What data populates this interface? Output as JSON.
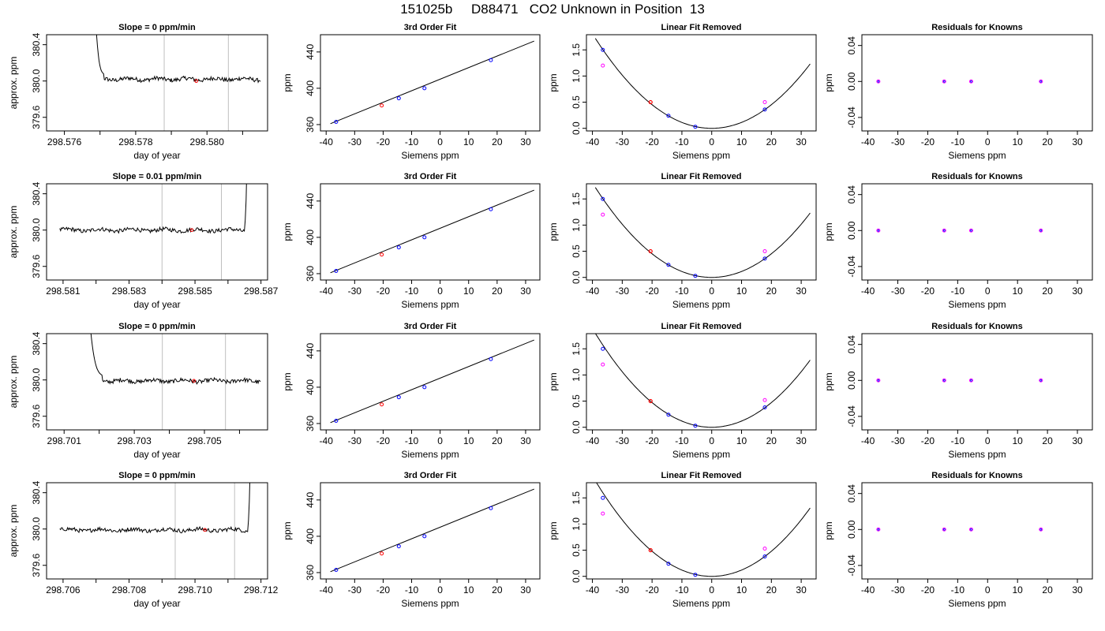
{
  "page": {
    "title": "151025b     D88471   CO2 Unknown in Position  13"
  },
  "colors": {
    "trace": "#000000",
    "window_lines": "#bfbfbf",
    "unknown_point": "#ff0000",
    "standard_point": "#0000ff",
    "residual_point": "#ff00ff"
  },
  "chart_data": [
    {
      "row": 1,
      "panel": "time-series",
      "type": "line",
      "title": "Slope =  0  ppm/min",
      "xlabel": "day of year",
      "ylabel": "approx. ppm",
      "xlim": [
        298.5755,
        298.5817
      ],
      "ylim": [
        379.45,
        380.51
      ],
      "xticks": [
        "298.576",
        "298.578",
        "298.580"
      ],
      "xtick_values": [
        298.576,
        298.578,
        298.58
      ],
      "yticks": [
        "379.6",
        "380.0",
        "380.4"
      ],
      "ytick_values": [
        379.6,
        380.0,
        380.4
      ],
      "minor_xticks": [
        298.577,
        298.579,
        298.581
      ],
      "window": [
        298.5788,
        298.5806
      ],
      "unknown_point": {
        "x": 298.5797,
        "y": 380.0
      },
      "trace": {
        "start": 298.5768,
        "end": 298.5815,
        "drop_end": 298.5771,
        "level": 380.02,
        "spike_side": "left"
      }
    },
    {
      "row": 1,
      "panel": "fit",
      "type": "scatter",
      "title": "3rd Order Fit",
      "xlabel": "Siemens ppm",
      "ylabel": "ppm",
      "xlim": [
        -42,
        35
      ],
      "ylim": [
        353,
        459
      ],
      "xticks": [
        "-40",
        "-30",
        "-20",
        "-10",
        "0",
        "10",
        "20",
        "30"
      ],
      "xtick_values": [
        -40,
        -30,
        -20,
        -10,
        0,
        10,
        20,
        30
      ],
      "yticks": [
        "360",
        "400",
        "440"
      ],
      "ytick_values": [
        360,
        400,
        440
      ],
      "standards": [
        {
          "x": -36.5,
          "y": 363.0
        },
        {
          "x": -14.5,
          "y": 389.0
        },
        {
          "x": -5.5,
          "y": 400.0
        },
        {
          "x": 17.8,
          "y": 431.0
        }
      ],
      "unknown": {
        "x": -20.5,
        "y": 381.0
      },
      "fit_line": [
        {
          "x": -38.5,
          "y": 361
        },
        {
          "x": 33,
          "y": 452
        }
      ]
    },
    {
      "row": 1,
      "panel": "linear-removed",
      "type": "scatter",
      "title": "Linear Fit Removed",
      "xlabel": "Siemens ppm",
      "ylabel": "ppm",
      "xlim": [
        -42,
        35
      ],
      "ylim": [
        -0.05,
        1.79
      ],
      "xticks": [
        "-40",
        "-30",
        "-20",
        "-10",
        "0",
        "10",
        "20",
        "30"
      ],
      "xtick_values": [
        -40,
        -30,
        -20,
        -10,
        0,
        10,
        20,
        30
      ],
      "yticks": [
        "0.0",
        "0.5",
        "1.0",
        "1.5"
      ],
      "ytick_values": [
        0.0,
        0.5,
        1.0,
        1.5
      ],
      "curve_coeff": 0.00113,
      "standards": [
        {
          "x": -36.5,
          "y": 1.5
        },
        {
          "x": -14.5,
          "y": 0.24
        },
        {
          "x": -5.5,
          "y": 0.03
        },
        {
          "x": 17.8,
          "y": 0.36
        }
      ],
      "unknown": {
        "x": -20.5,
        "y": 0.5
      },
      "magenta": [
        {
          "x": -36.5,
          "y": 1.2
        },
        {
          "x": 17.8,
          "y": 0.5
        }
      ]
    },
    {
      "row": 1,
      "panel": "residuals",
      "type": "scatter",
      "title": "Residuals for Knowns",
      "xlabel": "Siemens ppm",
      "ylabel": "ppm",
      "xlim": [
        -42,
        35
      ],
      "ylim": [
        -0.055,
        0.052
      ],
      "xticks": [
        "-40",
        "-30",
        "-20",
        "-10",
        "0",
        "10",
        "20",
        "30"
      ],
      "xtick_values": [
        -40,
        -30,
        -20,
        -10,
        0,
        10,
        20,
        30
      ],
      "yticks": [
        "-0.04",
        "0.00",
        "0.04"
      ],
      "ytick_values": [
        -0.04,
        0.0,
        0.04
      ],
      "points": [
        {
          "x": -36.5,
          "y": 0.0
        },
        {
          "x": -14.5,
          "y": 0.0
        },
        {
          "x": -5.5,
          "y": 0.0
        },
        {
          "x": 17.8,
          "y": 0.0
        }
      ]
    },
    {
      "row": 2,
      "panel": "time-series",
      "type": "line",
      "title": "Slope =  0.01  ppm/min",
      "xlabel": "day of year",
      "ylabel": "approx. ppm",
      "xlim": [
        298.5805,
        298.5872
      ],
      "ylim": [
        379.45,
        380.51
      ],
      "xticks": [
        "298.581",
        "298.583",
        "298.585",
        "298.587"
      ],
      "xtick_values": [
        298.581,
        298.583,
        298.585,
        298.587
      ],
      "yticks": [
        "379.6",
        "380.0",
        "380.4"
      ],
      "ytick_values": [
        379.6,
        380.0,
        380.4
      ],
      "minor_xticks": [
        298.582,
        298.584,
        298.586
      ],
      "window": [
        298.584,
        298.5858
      ],
      "unknown_point": {
        "x": 298.5849,
        "y": 380.0
      },
      "trace": {
        "start": 298.5809,
        "end": 298.5866,
        "drop_end": 298.5865,
        "level": 380.0,
        "spike_side": "right"
      }
    },
    {
      "row": 2,
      "panel": "fit",
      "type": "scatter",
      "title": "3rd Order Fit",
      "xlabel": "Siemens ppm",
      "ylabel": "ppm",
      "xlim": [
        -42,
        35
      ],
      "ylim": [
        353,
        459
      ],
      "xticks": [
        "-40",
        "-30",
        "-20",
        "-10",
        "0",
        "10",
        "20",
        "30"
      ],
      "xtick_values": [
        -40,
        -30,
        -20,
        -10,
        0,
        10,
        20,
        30
      ],
      "yticks": [
        "360",
        "400",
        "440"
      ],
      "ytick_values": [
        360,
        400,
        440
      ],
      "standards": [
        {
          "x": -36.5,
          "y": 363.0
        },
        {
          "x": -14.5,
          "y": 389.0
        },
        {
          "x": -5.5,
          "y": 400.0
        },
        {
          "x": 17.8,
          "y": 431.0
        }
      ],
      "unknown": {
        "x": -20.5,
        "y": 381.0
      },
      "fit_line": [
        {
          "x": -38.5,
          "y": 361
        },
        {
          "x": 33,
          "y": 452
        }
      ]
    },
    {
      "row": 2,
      "panel": "linear-removed",
      "type": "scatter",
      "title": "Linear Fit Removed",
      "xlabel": "Siemens ppm",
      "ylabel": "ppm",
      "xlim": [
        -42,
        35
      ],
      "ylim": [
        -0.05,
        1.79
      ],
      "xticks": [
        "-40",
        "-30",
        "-20",
        "-10",
        "0",
        "10",
        "20",
        "30"
      ],
      "xtick_values": [
        -40,
        -30,
        -20,
        -10,
        0,
        10,
        20,
        30
      ],
      "yticks": [
        "0.0",
        "0.5",
        "1.0",
        "1.5"
      ],
      "ytick_values": [
        0.0,
        0.5,
        1.0,
        1.5
      ],
      "curve_coeff": 0.00113,
      "standards": [
        {
          "x": -36.5,
          "y": 1.5
        },
        {
          "x": -14.5,
          "y": 0.24
        },
        {
          "x": -5.5,
          "y": 0.03
        },
        {
          "x": 17.8,
          "y": 0.36
        }
      ],
      "unknown": {
        "x": -20.5,
        "y": 0.5
      },
      "magenta": [
        {
          "x": -36.5,
          "y": 1.2
        },
        {
          "x": 17.8,
          "y": 0.5
        }
      ]
    },
    {
      "row": 2,
      "panel": "residuals",
      "type": "scatter",
      "title": "Residuals for Knowns",
      "xlabel": "Siemens ppm",
      "ylabel": "ppm",
      "xlim": [
        -42,
        35
      ],
      "ylim": [
        -0.055,
        0.052
      ],
      "xticks": [
        "-40",
        "-30",
        "-20",
        "-10",
        "0",
        "10",
        "20",
        "30"
      ],
      "xtick_values": [
        -40,
        -30,
        -20,
        -10,
        0,
        10,
        20,
        30
      ],
      "yticks": [
        "-0.04",
        "0.00",
        "0.04"
      ],
      "ytick_values": [
        -0.04,
        0.0,
        0.04
      ],
      "points": [
        {
          "x": -36.5,
          "y": 0.0
        },
        {
          "x": -14.5,
          "y": 0.0
        },
        {
          "x": -5.5,
          "y": 0.0
        },
        {
          "x": 17.8,
          "y": 0.0
        }
      ]
    },
    {
      "row": 3,
      "panel": "time-series",
      "type": "line",
      "title": "Slope =  0  ppm/min",
      "xlabel": "day of year",
      "ylabel": "approx. ppm",
      "xlim": [
        298.7005,
        298.7068
      ],
      "ylim": [
        379.45,
        380.51
      ],
      "xticks": [
        "298.701",
        "298.703",
        "298.705"
      ],
      "xtick_values": [
        298.701,
        298.703,
        298.705
      ],
      "yticks": [
        "379.6",
        "380.0",
        "380.4"
      ],
      "ytick_values": [
        379.6,
        380.0,
        380.4
      ],
      "minor_xticks": [
        298.702,
        298.704,
        298.706
      ],
      "window": [
        298.7038,
        298.7056
      ],
      "unknown_point": {
        "x": 298.7047,
        "y": 379.99
      },
      "trace": {
        "start": 298.7016,
        "end": 298.7066,
        "drop_end": 298.7021,
        "level": 379.99,
        "spike_side": "left"
      }
    },
    {
      "row": 3,
      "panel": "fit",
      "type": "scatter",
      "title": "3rd Order Fit",
      "xlabel": "Siemens ppm",
      "ylabel": "ppm",
      "xlim": [
        -42,
        35
      ],
      "ylim": [
        353,
        459
      ],
      "xticks": [
        "-40",
        "-30",
        "-20",
        "-10",
        "0",
        "10",
        "20",
        "30"
      ],
      "xtick_values": [
        -40,
        -30,
        -20,
        -10,
        0,
        10,
        20,
        30
      ],
      "yticks": [
        "360",
        "400",
        "440"
      ],
      "ytick_values": [
        360,
        400,
        440
      ],
      "standards": [
        {
          "x": -36.5,
          "y": 363.0
        },
        {
          "x": -14.5,
          "y": 389.0
        },
        {
          "x": -5.5,
          "y": 400.0
        },
        {
          "x": 17.8,
          "y": 431.0
        }
      ],
      "unknown": {
        "x": -20.5,
        "y": 381.0
      },
      "fit_line": [
        {
          "x": -38.5,
          "y": 361
        },
        {
          "x": 33,
          "y": 452
        }
      ]
    },
    {
      "row": 3,
      "panel": "linear-removed",
      "type": "scatter",
      "title": "Linear Fit Removed",
      "xlabel": "Siemens ppm",
      "ylabel": "ppm",
      "xlim": [
        -42,
        35
      ],
      "ylim": [
        -0.05,
        1.79
      ],
      "xticks": [
        "-40",
        "-30",
        "-20",
        "-10",
        "0",
        "10",
        "20",
        "30"
      ],
      "xtick_values": [
        -40,
        -30,
        -20,
        -10,
        0,
        10,
        20,
        30
      ],
      "yticks": [
        "0.0",
        "0.5",
        "1.0",
        "1.5"
      ],
      "ytick_values": [
        0.0,
        0.5,
        1.0,
        1.5
      ],
      "curve_coeff": 0.00118,
      "standards": [
        {
          "x": -36.5,
          "y": 1.5
        },
        {
          "x": -14.5,
          "y": 0.24
        },
        {
          "x": -5.5,
          "y": 0.03
        },
        {
          "x": 17.8,
          "y": 0.38
        }
      ],
      "unknown": {
        "x": -20.5,
        "y": 0.5
      },
      "magenta": [
        {
          "x": -36.5,
          "y": 1.2
        },
        {
          "x": 17.8,
          "y": 0.52
        }
      ]
    },
    {
      "row": 3,
      "panel": "residuals",
      "type": "scatter",
      "title": "Residuals for Knowns",
      "xlabel": "Siemens ppm",
      "ylabel": "ppm",
      "xlim": [
        -42,
        35
      ],
      "ylim": [
        -0.055,
        0.052
      ],
      "xticks": [
        "-40",
        "-30",
        "-20",
        "-10",
        "0",
        "10",
        "20",
        "30"
      ],
      "xtick_values": [
        -40,
        -30,
        -20,
        -10,
        0,
        10,
        20,
        30
      ],
      "yticks": [
        "-0.04",
        "0.00",
        "0.04"
      ],
      "ytick_values": [
        -0.04,
        0.0,
        0.04
      ],
      "points": [
        {
          "x": -36.5,
          "y": 0.0
        },
        {
          "x": -14.5,
          "y": 0.0
        },
        {
          "x": -5.5,
          "y": 0.0
        },
        {
          "x": 17.8,
          "y": 0.0
        }
      ]
    },
    {
      "row": 4,
      "panel": "time-series",
      "type": "line",
      "title": "Slope =  0  ppm/min",
      "xlabel": "day of year",
      "ylabel": "approx. ppm",
      "xlim": [
        298.7055,
        298.7122
      ],
      "ylim": [
        379.45,
        380.51
      ],
      "xticks": [
        "298.706",
        "298.708",
        "298.710",
        "298.712"
      ],
      "xtick_values": [
        298.706,
        298.708,
        298.71,
        298.712
      ],
      "yticks": [
        "379.6",
        "380.0",
        "380.4"
      ],
      "ytick_values": [
        379.6,
        380.0,
        380.4
      ],
      "minor_xticks": [
        298.707,
        298.709,
        298.711
      ],
      "window": [
        298.7094,
        298.7112
      ],
      "unknown_point": {
        "x": 298.7103,
        "y": 379.99
      },
      "trace": {
        "start": 298.7059,
        "end": 298.7117,
        "drop_end": 298.7116,
        "level": 379.99,
        "spike_side": "right"
      }
    },
    {
      "row": 4,
      "panel": "fit",
      "type": "scatter",
      "title": "3rd Order Fit",
      "xlabel": "Siemens ppm",
      "ylabel": "ppm",
      "xlim": [
        -42,
        35
      ],
      "ylim": [
        353,
        459
      ],
      "xticks": [
        "-40",
        "-30",
        "-20",
        "-10",
        "0",
        "10",
        "20",
        "30"
      ],
      "xtick_values": [
        -40,
        -30,
        -20,
        -10,
        0,
        10,
        20,
        30
      ],
      "yticks": [
        "360",
        "400",
        "440"
      ],
      "ytick_values": [
        360,
        400,
        440
      ],
      "standards": [
        {
          "x": -36.5,
          "y": 363.0
        },
        {
          "x": -14.5,
          "y": 389.0
        },
        {
          "x": -5.5,
          "y": 400.0
        },
        {
          "x": 17.8,
          "y": 431.0
        }
      ],
      "unknown": {
        "x": -20.5,
        "y": 381.0
      },
      "fit_line": [
        {
          "x": -38.5,
          "y": 361
        },
        {
          "x": 33,
          "y": 452
        }
      ]
    },
    {
      "row": 4,
      "panel": "linear-removed",
      "type": "scatter",
      "title": "Linear Fit Removed",
      "xlabel": "Siemens ppm",
      "ylabel": "ppm",
      "xlim": [
        -42,
        35
      ],
      "ylim": [
        -0.05,
        1.79
      ],
      "xticks": [
        "-40",
        "-30",
        "-20",
        "-10",
        "0",
        "10",
        "20",
        "30"
      ],
      "xtick_values": [
        -40,
        -30,
        -20,
        -10,
        0,
        10,
        20,
        30
      ],
      "yticks": [
        "0.0",
        "0.5",
        "1.0",
        "1.5"
      ],
      "ytick_values": [
        0.0,
        0.5,
        1.0,
        1.5
      ],
      "curve_coeff": 0.0012,
      "standards": [
        {
          "x": -36.5,
          "y": 1.5
        },
        {
          "x": -14.5,
          "y": 0.24
        },
        {
          "x": -5.5,
          "y": 0.03
        },
        {
          "x": 17.8,
          "y": 0.38
        }
      ],
      "unknown": {
        "x": -20.5,
        "y": 0.5
      },
      "magenta": [
        {
          "x": -36.5,
          "y": 1.2
        },
        {
          "x": 17.8,
          "y": 0.53
        }
      ]
    },
    {
      "row": 4,
      "panel": "residuals",
      "type": "scatter",
      "title": "Residuals for Knowns",
      "xlabel": "Siemens ppm",
      "ylabel": "ppm",
      "xlim": [
        -42,
        35
      ],
      "ylim": [
        -0.055,
        0.052
      ],
      "xticks": [
        "-40",
        "-30",
        "-20",
        "-10",
        "0",
        "10",
        "20",
        "30"
      ],
      "xtick_values": [
        -40,
        -30,
        -20,
        -10,
        0,
        10,
        20,
        30
      ],
      "yticks": [
        "-0.04",
        "0.00",
        "0.04"
      ],
      "ytick_values": [
        -0.04,
        0.0,
        0.04
      ],
      "points": [
        {
          "x": -36.5,
          "y": 0.0
        },
        {
          "x": -14.5,
          "y": 0.0
        },
        {
          "x": -5.5,
          "y": 0.0
        },
        {
          "x": 17.8,
          "y": 0.0
        }
      ]
    }
  ]
}
